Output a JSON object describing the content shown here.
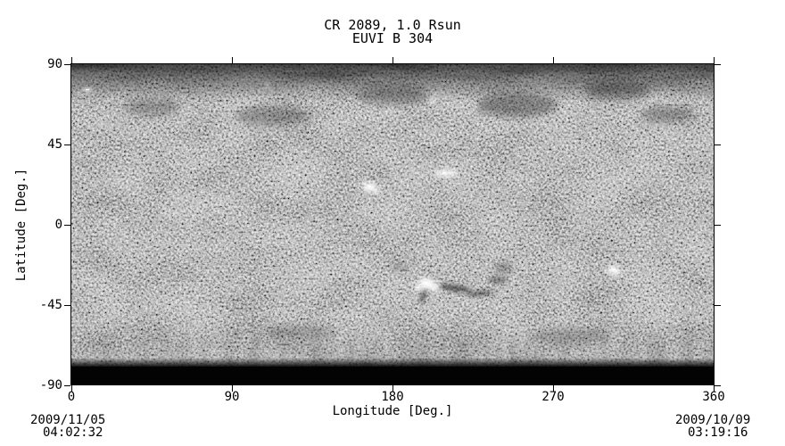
{
  "figure": {
    "title_line1": "CR 2089, 1.0 Rsun",
    "title_line2": "EUVI B 304",
    "x_axis": {
      "label": "Longitude [Deg.]",
      "ticks": [
        {
          "value": 0,
          "label": "0"
        },
        {
          "value": 90,
          "label": "90"
        },
        {
          "value": 180,
          "label": "180"
        },
        {
          "value": 270,
          "label": "270"
        },
        {
          "value": 360,
          "label": "360"
        }
      ]
    },
    "y_axis": {
      "label": "Latitude [Deg.]",
      "ticks": [
        {
          "value": 90,
          "label": "90"
        },
        {
          "value": 45,
          "label": "45"
        },
        {
          "value": 0,
          "label": "0"
        },
        {
          "value": -45,
          "label": "-45"
        },
        {
          "value": -90,
          "label": "-90"
        }
      ]
    },
    "timestamp_left": {
      "date": "2009/11/05",
      "time": "04:02:32"
    },
    "timestamp_right": {
      "date": "2009/10/09",
      "time": "03:19:16"
    }
  },
  "chart_data": {
    "type": "heatmap",
    "title": "CR 2089, 1.0 Rsun",
    "subtitle": "EUVI B 304",
    "xlabel": "Longitude [Deg.]",
    "ylabel": "Latitude [Deg.]",
    "xlim": [
      0,
      360
    ],
    "ylim": [
      -90,
      90
    ],
    "x_ticks": [
      0,
      90,
      180,
      270,
      360
    ],
    "y_ticks": [
      90,
      45,
      0,
      -45,
      -90
    ],
    "colormap": "grayscale",
    "grid": false,
    "legend": "none",
    "image_content": "Grainy grayscale full-Sun Carrington synoptic map of He II 304 A emission from STEREO EUVI-B; dark mottled band at north polar latitudes, bright streaky plumes at south polar latitudes, solid black no-data band at the bottom edge",
    "notable_features": [
      {
        "type": "bright-active-region",
        "lon": 168,
        "lat": 21
      },
      {
        "type": "bright-plage-streak",
        "lon": 210,
        "lat": 29
      },
      {
        "type": "bright-active-region",
        "lon": 199,
        "lat": -33
      },
      {
        "type": "bright-active-region",
        "lon": 304,
        "lat": -26
      },
      {
        "type": "dark-filament-channel",
        "lon_range": [
          200,
          250
        ],
        "lat": -30
      },
      {
        "type": "dark-polar-mottling",
        "lat_range": [
          75,
          90
        ]
      },
      {
        "type": "bright-polar-plumes",
        "lat_range": [
          -75,
          -60
        ]
      },
      {
        "type": "no-data-black-band",
        "lat_range": [
          -90,
          -80
        ]
      }
    ],
    "observation_start": "2009/11/05 04:02:32",
    "observation_end": "2009/10/09 03:19:16"
  }
}
